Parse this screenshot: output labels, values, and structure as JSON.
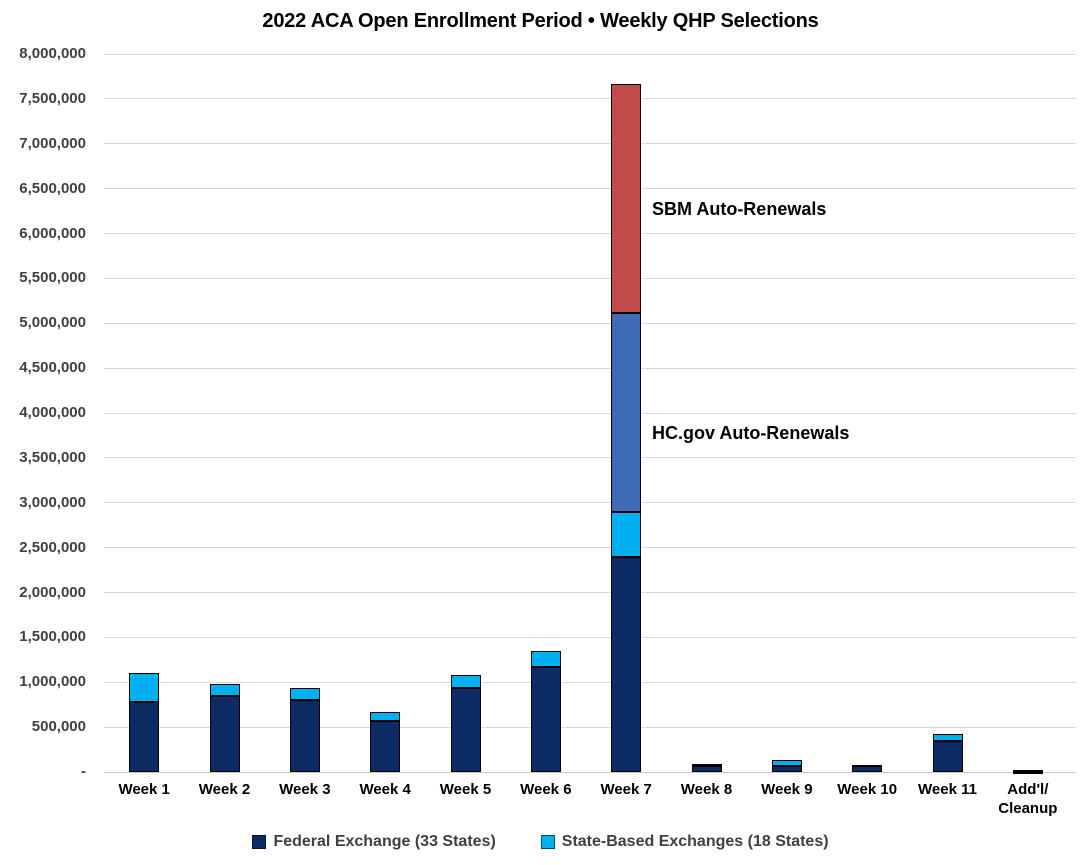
{
  "chart_data": {
    "type": "bar",
    "stacked": true,
    "title": "2022 ACA Open Enrollment Period • Weekly QHP Selections",
    "y_axis": {
      "min": 0,
      "max": 8000000,
      "step": 500000,
      "gridlines": true,
      "tick_labels": [
        "-",
        "500,000",
        "1,000,000",
        "1,500,000",
        "2,000,000",
        "2,500,000",
        "3,000,000",
        "3,500,000",
        "4,000,000",
        "4,500,000",
        "5,000,000",
        "5,500,000",
        "6,000,000",
        "6,500,000",
        "7,000,000",
        "7,500,000",
        "8,000,000"
      ]
    },
    "segment_colors": {
      "federal": "#0C2A63",
      "state": "#00B0F0",
      "hcgov_auto": "#3E6BB4",
      "sbm_auto": "#C24B4B"
    },
    "segment_names": {
      "federal": "Federal Exchange (33 States)",
      "state": "State-Based Exchanges (18 States)",
      "hcgov_auto": "HC.gov Auto-Renewals",
      "sbm_auto": "SBM Auto-Renewals"
    },
    "bars": [
      {
        "label": "Week 1",
        "segments": [
          {
            "key": "federal",
            "value": 780000
          },
          {
            "key": "state",
            "value": 320000
          }
        ]
      },
      {
        "label": "Week 2",
        "segments": [
          {
            "key": "federal",
            "value": 845000
          },
          {
            "key": "state",
            "value": 135000
          }
        ]
      },
      {
        "label": "Week 3",
        "segments": [
          {
            "key": "federal",
            "value": 800000
          },
          {
            "key": "state",
            "value": 135000
          }
        ]
      },
      {
        "label": "Week 4",
        "segments": [
          {
            "key": "federal",
            "value": 570000
          },
          {
            "key": "state",
            "value": 95000
          }
        ]
      },
      {
        "label": "Week 5",
        "segments": [
          {
            "key": "federal",
            "value": 940000
          },
          {
            "key": "state",
            "value": 145000
          }
        ]
      },
      {
        "label": "Week 6",
        "segments": [
          {
            "key": "federal",
            "value": 1170000
          },
          {
            "key": "state",
            "value": 175000
          }
        ]
      },
      {
        "label": "Week 7",
        "segments": [
          {
            "key": "federal",
            "value": 2390000
          },
          {
            "key": "state",
            "value": 510000
          },
          {
            "key": "hcgov_auto",
            "value": 2210000
          },
          {
            "key": "sbm_auto",
            "value": 2560000
          }
        ]
      },
      {
        "label": "Week 8",
        "segments": [
          {
            "key": "federal",
            "value": 70000
          },
          {
            "key": "state",
            "value": 15000
          }
        ]
      },
      {
        "label": "Week 9",
        "segments": [
          {
            "key": "federal",
            "value": 65000
          },
          {
            "key": "state",
            "value": 70000
          }
        ]
      },
      {
        "label": "Week 10",
        "segments": [
          {
            "key": "federal",
            "value": 65000
          },
          {
            "key": "state",
            "value": 15000
          }
        ]
      },
      {
        "label": "Week 11",
        "segments": [
          {
            "key": "federal",
            "value": 340000
          },
          {
            "key": "state",
            "value": 80000
          }
        ]
      },
      {
        "label": "Add'l/\nCleanup",
        "segments": [
          {
            "key": "federal",
            "value": 5000
          },
          {
            "key": "state",
            "value": 15000
          }
        ]
      }
    ],
    "annotations": [
      {
        "text": "SBM Auto-Renewals",
        "anchor_value": 6250000
      },
      {
        "text": "HC.gov Auto-Renewals",
        "anchor_value": 3750000
      }
    ],
    "legend_position": "bottom"
  },
  "legend": {
    "items": [
      {
        "label": "Federal Exchange (33 States)",
        "color_key": "federal"
      },
      {
        "label": "State-Based Exchanges (18 States)",
        "color_key": "state"
      }
    ]
  }
}
